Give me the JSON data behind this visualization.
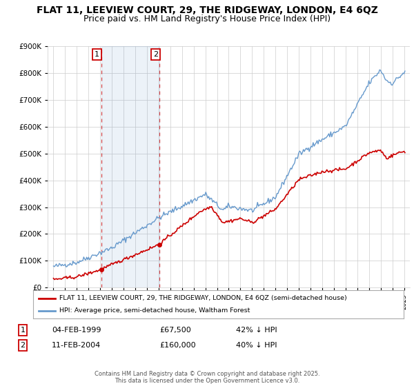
{
  "title": "FLAT 11, LEEVIEW COURT, 29, THE RIDGEWAY, LONDON, E4 6QZ",
  "subtitle": "Price paid vs. HM Land Registry's House Price Index (HPI)",
  "legend_line1": "FLAT 11, LEEVIEW COURT, 29, THE RIDGEWAY, LONDON, E4 6QZ (semi-detached house)",
  "legend_line2": "HPI: Average price, semi-detached house, Waltham Forest",
  "footer": "Contains HM Land Registry data © Crown copyright and database right 2025.\nThis data is licensed under the Open Government Licence v3.0.",
  "sale1_date": "04-FEB-1999",
  "sale1_price": 67500,
  "sale1_label": "42% ↓ HPI",
  "sale1_x": 1999.09,
  "sale2_date": "11-FEB-2004",
  "sale2_price": 160000,
  "sale2_label": "40% ↓ HPI",
  "sale2_x": 2004.09,
  "ylim": [
    0,
    900000
  ],
  "xlim": [
    1994.5,
    2025.5
  ],
  "red_color": "#cc0000",
  "blue_color": "#6699cc",
  "annot_box_color": "#cc0000",
  "grid_color": "#cccccc",
  "bg_color": "#ffffff",
  "title_fontsize": 10,
  "subtitle_fontsize": 9
}
